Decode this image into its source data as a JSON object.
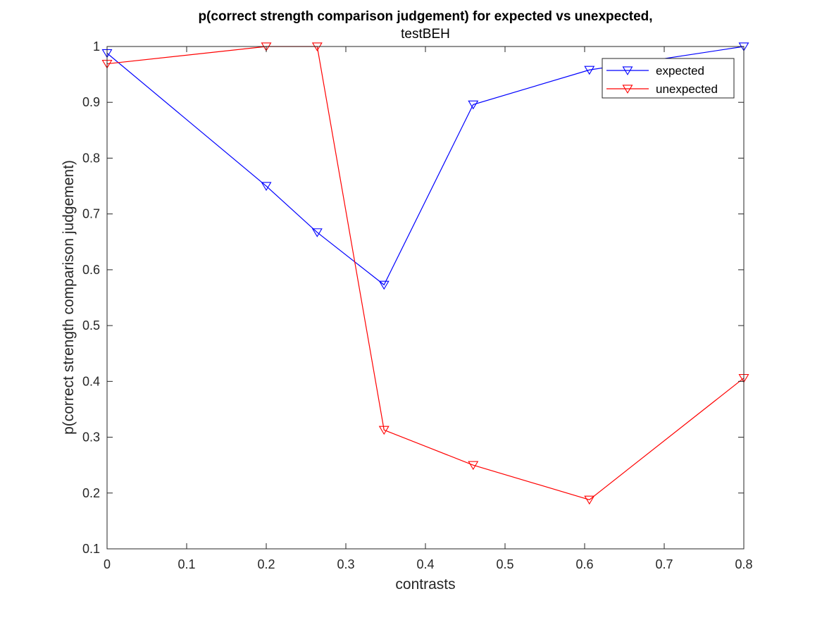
{
  "chart_data": {
    "type": "line",
    "title": "p(correct strength comparison judgement) for expected vs unexpected,",
    "subtitle": "testBEH",
    "xlabel": "contrasts",
    "ylabel": "p(correct strength comparison judgement)",
    "xlim": [
      0,
      0.8
    ],
    "ylim": [
      0.1,
      1
    ],
    "xticks": [
      "0",
      "0.1",
      "0.2",
      "0.3",
      "0.4",
      "0.5",
      "0.6",
      "0.7",
      "0.8"
    ],
    "yticks": [
      "0.1",
      "0.2",
      "0.3",
      "0.4",
      "0.5",
      "0.6",
      "0.7",
      "0.8",
      "0.9",
      "1"
    ],
    "grid": false,
    "legend_position": "top-right",
    "marker": "triangle-down",
    "x": [
      0,
      0.2,
      0.264,
      0.348,
      0.46,
      0.606,
      0.8
    ],
    "series": [
      {
        "name": "expected",
        "color": "#0000ff",
        "values": [
          0.988,
          0.75,
          0.667,
          0.573,
          0.896,
          0.958,
          1.0
        ]
      },
      {
        "name": "unexpected",
        "color": "#ff0000",
        "values": [
          0.969,
          1.0,
          1.0,
          0.313,
          0.25,
          0.188,
          0.406
        ]
      }
    ]
  }
}
